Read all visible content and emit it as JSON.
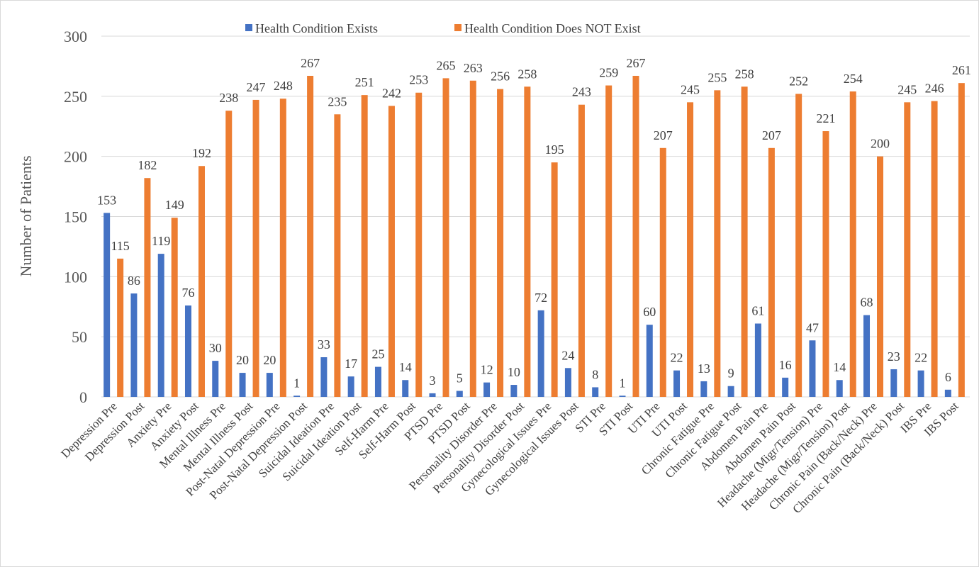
{
  "chart_data": {
    "type": "bar",
    "title": "",
    "xlabel": "",
    "ylabel": "Number of Patients",
    "ylim": [
      0,
      300
    ],
    "yticks": [
      0,
      50,
      100,
      150,
      200,
      250,
      300
    ],
    "grid": true,
    "legend_position": "top",
    "categories": [
      "Depression Pre",
      "Depression Post",
      "Anxiety Pre",
      "Anxiety Post",
      "Mental Illness Pre",
      "Mental Illness Post",
      "Post-Natal Depression Pre",
      "Post-Natal Depression Post",
      "Suicidal Ideation Pre",
      "Suicidal Ideation Post",
      "Self-Harm Pre",
      "Self-Harm Post",
      "PTSD Pre",
      "PTSD  Post",
      "Personality Disorder Pre",
      "Personality Disorder Post",
      "Gynecological Issues Pre",
      "Gynecological Issues Post",
      "STI    Pre",
      "STI  Post",
      "UTI   Pre",
      "UTI  Post",
      "Chronic Fatigue Pre",
      "Chronic Fatigue Post",
      "Abdomen Pain  Pre",
      "Abdomen Pain   Post",
      "Headache (Migr/Tension) Pre",
      "Headache (Migr/Tension) Post",
      "Chronic Pain (Back/Neck) Pre",
      "Chronic Pain (Back/Neck) Post",
      "IBS Pre",
      "IBS Post"
    ],
    "series": [
      {
        "name": "Health Condition Exists",
        "color": "#4472c4",
        "values": [
          153,
          86,
          119,
          76,
          30,
          20,
          20,
          1,
          33,
          17,
          25,
          14,
          3,
          5,
          12,
          10,
          72,
          24,
          8,
          1,
          60,
          22,
          13,
          9,
          61,
          16,
          47,
          14,
          68,
          23,
          22,
          6
        ]
      },
      {
        "name": "Health Condition Does NOT Exist",
        "color": "#ed7d31",
        "values": [
          115,
          182,
          149,
          192,
          238,
          247,
          248,
          267,
          235,
          251,
          242,
          253,
          265,
          263,
          256,
          258,
          195,
          243,
          259,
          267,
          207,
          245,
          255,
          258,
          207,
          252,
          221,
          254,
          200,
          245,
          246,
          261
        ]
      }
    ]
  }
}
